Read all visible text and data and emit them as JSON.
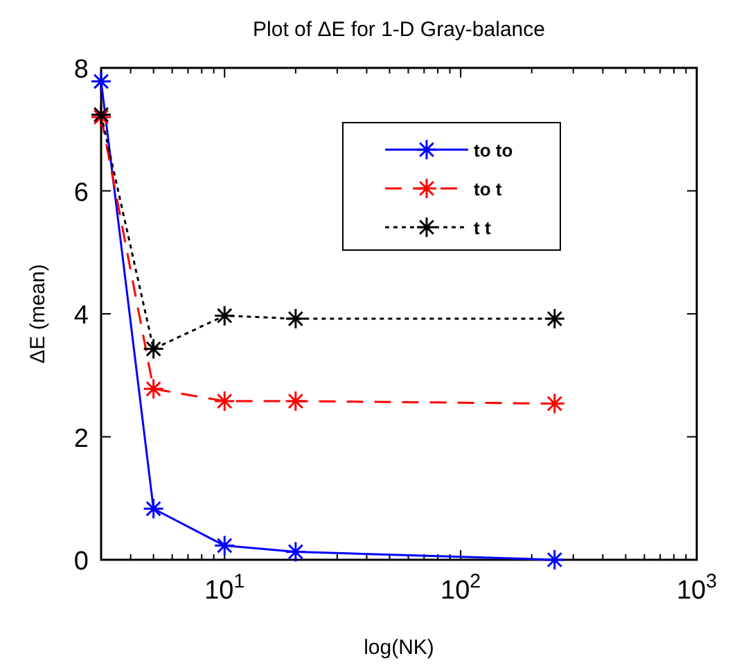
{
  "chart_data": {
    "type": "line",
    "title": "Plot of ΔE for 1-D Gray-balance",
    "xlabel": "log(NK)",
    "ylabel": "ΔE (mean)",
    "x": [
      3,
      5,
      10,
      20,
      250
    ],
    "series": [
      {
        "name": "to to",
        "color": "#0000ff",
        "values": [
          7.78,
          0.83,
          0.23,
          0.13,
          0
        ],
        "line_style": "solid"
      },
      {
        "name": "to t",
        "color": "#ff0000",
        "values": [
          7.2,
          2.78,
          2.58,
          2.58,
          2.54
        ],
        "line_style": "dashed"
      },
      {
        "name": "t t",
        "color": "#000000",
        "values": [
          7.24,
          3.43,
          3.97,
          3.92,
          3.92
        ],
        "line_style": "dotted"
      }
    ],
    "log": "x",
    "xlim": [
      3,
      1000
    ],
    "xticks": [
      {
        "value": 4,
        "label": null
      },
      {
        "value": 5,
        "label": null
      },
      {
        "value": 6,
        "label": null
      },
      {
        "value": 7,
        "label": null
      },
      {
        "value": 8,
        "label": null
      },
      {
        "value": 9,
        "label": null
      },
      {
        "value": 10,
        "label": "10$^{1}$"
      },
      {
        "value": 20,
        "label": null
      },
      {
        "value": 30,
        "label": null
      },
      {
        "value": 40,
        "label": null
      },
      {
        "value": 50,
        "label": null
      },
      {
        "value": 60,
        "label": null
      },
      {
        "value": 70,
        "label": null
      },
      {
        "value": 80,
        "label": null
      },
      {
        "value": 90,
        "label": null
      },
      {
        "value": 100,
        "label": "10$^{2}$"
      },
      {
        "value": 200,
        "label": null
      },
      {
        "value": 300,
        "label": null
      },
      {
        "value": 400,
        "label": null
      },
      {
        "value": 500,
        "label": null
      },
      {
        "value": 600,
        "label": null
      },
      {
        "value": 700,
        "label": null
      },
      {
        "value": 800,
        "label": null
      },
      {
        "value": 900,
        "label": null
      },
      {
        "value": 1000,
        "label": "10$^{3}$"
      }
    ],
    "ylim": [
      0,
      8
    ],
    "yticks": [
      0,
      2,
      4,
      6,
      8
    ],
    "grid": false,
    "legend": "top right",
    "marker": "cross"
  }
}
